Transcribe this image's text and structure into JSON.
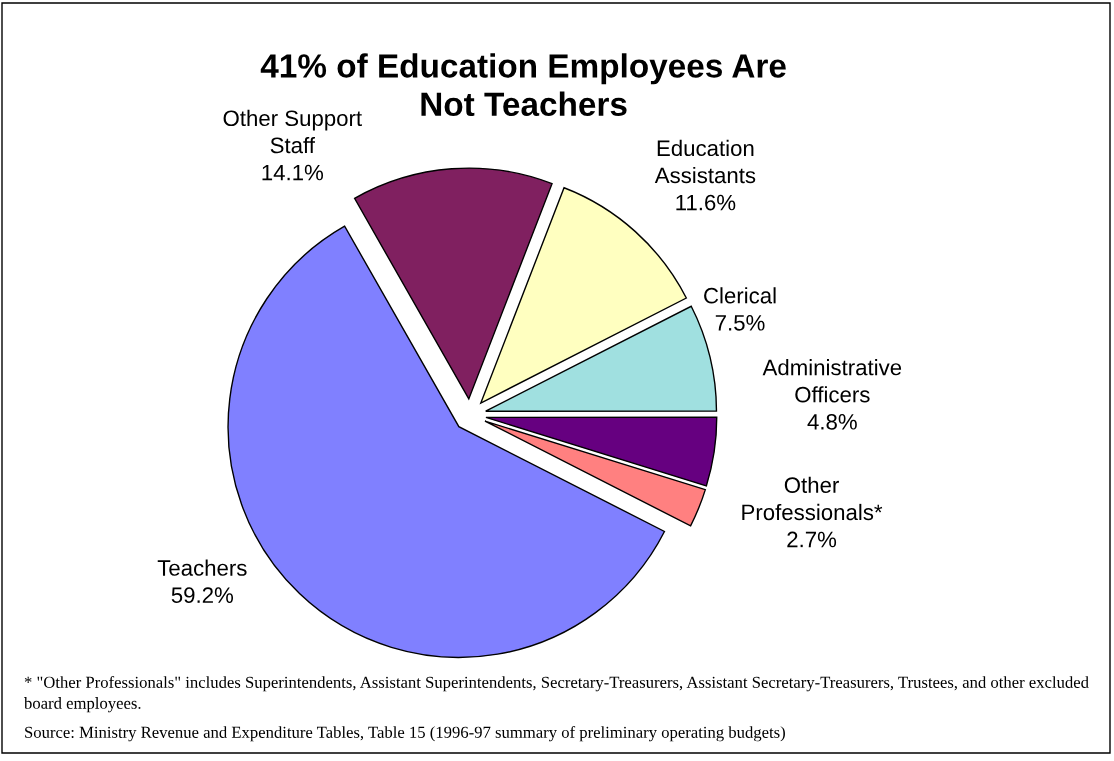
{
  "chart_data": {
    "type": "pie",
    "title": "41% of Education Employees Are\nNot Teachers",
    "categories": [
      "Other\nProfessionals*",
      "Administrative\nOfficers",
      "Clerical",
      "Education\nAssistants",
      "Other Support\nStaff",
      "Teachers"
    ],
    "values": [
      2.7,
      4.8,
      7.5,
      11.6,
      14.1,
      59.2
    ],
    "value_labels": [
      "2.7%",
      "4.8%",
      "7.5%",
      "11.6%",
      "14.1%",
      "59.2%"
    ],
    "colors": [
      "#ff8080",
      "#660080",
      "#a0e0e0",
      "#ffffc0",
      "#802060",
      "#8080ff"
    ],
    "annotations": [
      "* \"Other Professionals\" includes Superintendents, Assistant Superintendents, Secretary-Treasurers, Assistant Secretary-Treasurers, Trustees, and other excluded board employees.",
      "Source: Ministry Revenue and Expenditure Tables, Table 15 (1996-97 summary of preliminary operating budgets)"
    ],
    "legend": false
  }
}
